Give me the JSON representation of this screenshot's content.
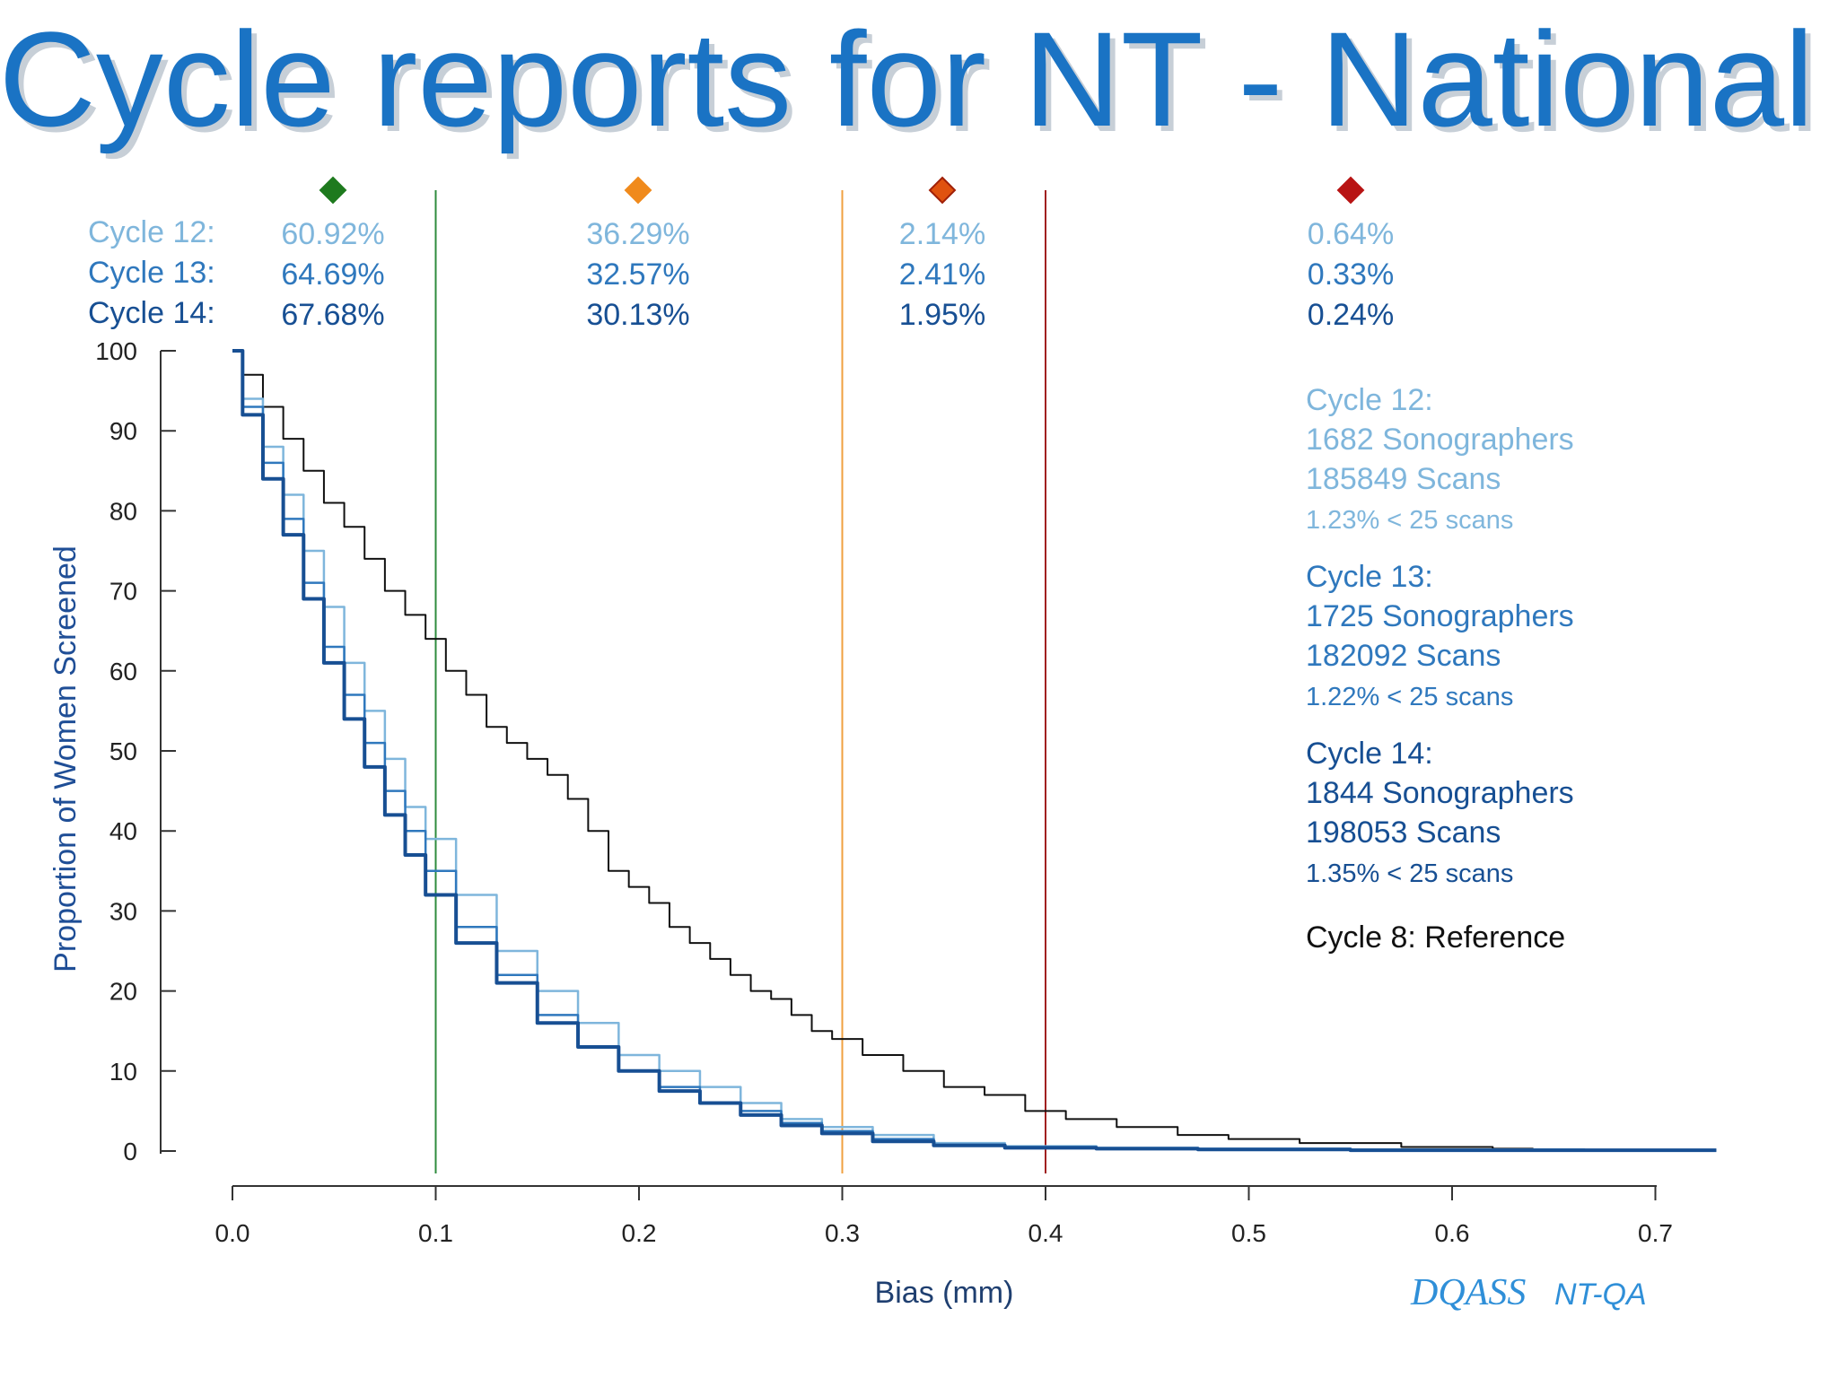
{
  "title": "Cycle reports for NT - National",
  "colors": {
    "title": "#1a73c4",
    "cycle12": "#7fb6dc",
    "cycle13": "#2f78bd",
    "cycle14": "#174f93",
    "reference": "#111111",
    "green": "#1e7a1e",
    "orange": "#f08a1c",
    "red_orange": "#e0520f",
    "dark_red": "#b81414",
    "line_green": "#2e8b3e",
    "line_orange": "#f0a040",
    "line_red": "#a02020",
    "ylabel": "#1f4e96"
  },
  "bands": [
    {
      "icon": "green-diamond-icon",
      "color": "#1e7a1e",
      "values": [
        "60.92%",
        "64.69%",
        "67.68%"
      ]
    },
    {
      "icon": "orange-diamond-icon",
      "color": "#f08a1c",
      "values": [
        "36.29%",
        "32.57%",
        "30.13%"
      ]
    },
    {
      "icon": "red-orange-diamond-icon",
      "color": "#e0520f",
      "values": [
        "2.14%",
        "2.41%",
        "1.95%"
      ]
    },
    {
      "icon": "dark-red-diamond-icon",
      "color": "#b81414",
      "values": [
        "0.64%",
        "0.33%",
        "0.24%"
      ]
    }
  ],
  "cycle_row_labels": [
    "Cycle 12:",
    "Cycle 13:",
    "Cycle 14:"
  ],
  "cycle_stats": [
    {
      "label": "Cycle 12:",
      "sonographers": "1682 Sonographers",
      "scans": "185849 Scans",
      "small": "1.23% < 25 scans",
      "color": "#7fb6dc"
    },
    {
      "label": "Cycle 13:",
      "sonographers": "1725 Sonographers",
      "scans": "182092 Scans",
      "small": "1.22% < 25 scans",
      "color": "#2f78bd"
    },
    {
      "label": "Cycle 14:",
      "sonographers": "1844 Sonographers",
      "scans": "198053 Scans",
      "small": "1.35% < 25 scans",
      "color": "#174f93"
    }
  ],
  "reference_label": "Cycle 8: Reference",
  "logo_text": "DQASS",
  "logo_sub": "NT-QA",
  "chart_data": {
    "type": "line",
    "title": "",
    "xlabel": "Bias (mm)",
    "ylabel": "Proportion of Women Screened",
    "xlim": [
      0.0,
      0.73
    ],
    "ylim": [
      0,
      100
    ],
    "x_ticks": [
      "0.0",
      "0.1",
      "0.2",
      "0.3",
      "0.4",
      "0.5",
      "0.6",
      "0.7"
    ],
    "y_ticks": [
      "0",
      "10",
      "20",
      "30",
      "40",
      "50",
      "60",
      "70",
      "80",
      "90",
      "100"
    ],
    "thresholds": [
      {
        "x": 0.1,
        "color": "#2e8b3e"
      },
      {
        "x": 0.3,
        "color": "#f0a040"
      },
      {
        "x": 0.4,
        "color": "#a02020"
      }
    ],
    "grid": false,
    "series": [
      {
        "name": "Cycle 8: Reference",
        "color": "#111111",
        "x": [
          0.0,
          0.01,
          0.02,
          0.03,
          0.04,
          0.05,
          0.06,
          0.07,
          0.08,
          0.09,
          0.1,
          0.11,
          0.12,
          0.13,
          0.14,
          0.15,
          0.16,
          0.17,
          0.18,
          0.19,
          0.2,
          0.21,
          0.22,
          0.23,
          0.24,
          0.25,
          0.26,
          0.27,
          0.28,
          0.29,
          0.3,
          0.32,
          0.34,
          0.36,
          0.38,
          0.4,
          0.42,
          0.45,
          0.48,
          0.5,
          0.55,
          0.6,
          0.64
        ],
        "y": [
          100,
          97,
          93,
          89,
          85,
          81,
          78,
          74,
          70,
          67,
          64,
          60,
          57,
          53,
          51,
          49,
          47,
          44,
          40,
          35,
          33,
          31,
          28,
          26,
          24,
          22,
          20,
          19,
          17,
          15,
          14,
          12,
          10,
          8,
          7,
          5,
          4,
          3,
          2,
          1.5,
          1,
          0.5,
          0.3
        ]
      },
      {
        "name": "Cycle 12:",
        "color": "#7fb6dc",
        "x": [
          0.0,
          0.01,
          0.02,
          0.03,
          0.04,
          0.05,
          0.06,
          0.07,
          0.08,
          0.09,
          0.1,
          0.12,
          0.14,
          0.16,
          0.18,
          0.2,
          0.22,
          0.24,
          0.26,
          0.28,
          0.3,
          0.33,
          0.36,
          0.4,
          0.45,
          0.5,
          0.6,
          0.73
        ],
        "y": [
          100,
          94,
          88,
          82,
          75,
          68,
          61,
          55,
          49,
          43,
          39,
          32,
          25,
          20,
          16,
          12,
          10,
          8,
          6,
          4,
          3,
          2,
          1,
          0.6,
          0.4,
          0.3,
          0.2,
          0.1
        ]
      },
      {
        "name": "Cycle 13:",
        "color": "#2f78bd",
        "x": [
          0.0,
          0.01,
          0.02,
          0.03,
          0.04,
          0.05,
          0.06,
          0.07,
          0.08,
          0.09,
          0.1,
          0.12,
          0.14,
          0.16,
          0.18,
          0.2,
          0.22,
          0.24,
          0.26,
          0.28,
          0.3,
          0.33,
          0.36,
          0.4,
          0.45,
          0.5,
          0.6,
          0.73
        ],
        "y": [
          100,
          93,
          86,
          79,
          71,
          63,
          57,
          51,
          45,
          40,
          35,
          28,
          22,
          17,
          13,
          10,
          8,
          6,
          5,
          3.5,
          2.5,
          1.5,
          0.8,
          0.5,
          0.3,
          0.2,
          0.1,
          0.1
        ]
      },
      {
        "name": "Cycle 14:",
        "color": "#174f93",
        "x": [
          0.0,
          0.01,
          0.02,
          0.03,
          0.04,
          0.05,
          0.06,
          0.07,
          0.08,
          0.09,
          0.1,
          0.12,
          0.14,
          0.16,
          0.18,
          0.2,
          0.22,
          0.24,
          0.26,
          0.28,
          0.3,
          0.33,
          0.36,
          0.4,
          0.45,
          0.5,
          0.6,
          0.73
        ],
        "y": [
          100,
          92,
          84,
          77,
          69,
          61,
          54,
          48,
          42,
          37,
          32,
          26,
          21,
          16,
          13,
          10,
          7.5,
          6,
          4.5,
          3.2,
          2.2,
          1.2,
          0.7,
          0.4,
          0.3,
          0.2,
          0.1,
          0.1
        ]
      }
    ]
  }
}
